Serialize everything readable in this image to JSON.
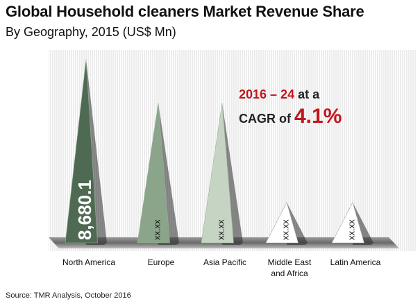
{
  "title": "Global Household cleaners Market Revenue Share",
  "subtitle": "By Geography, 2015 (US$ Mn)",
  "callout": {
    "period": "2016 – 24",
    "at_a": " at a",
    "cagr": "CAGR",
    "of": " of ",
    "cagr_value": "4.1%"
  },
  "source": "Source: TMR Analysis, October 2016",
  "colors": {
    "north_america": "#4e6a52",
    "europe": "#8aa58a",
    "asia_pacific": "#c6d5c3",
    "middle_east_africa": "#ffffff",
    "latin_america": "#ffffff",
    "shadow": "#3a3a3a",
    "accent": "#c0161e"
  },
  "chart_data": {
    "type": "bar",
    "categories": [
      "North America",
      "Europe",
      "Asia Pacific",
      "Middle East and Africa",
      "Latin America"
    ],
    "category_lines": [
      [
        "North America"
      ],
      [
        "Europe"
      ],
      [
        "Asia Pacific"
      ],
      [
        "Middle East",
        "and Africa"
      ],
      [
        "Latin America"
      ]
    ],
    "values": [
      8680.1,
      null,
      null,
      null,
      null
    ],
    "relative_heights": [
      1.0,
      0.76,
      0.76,
      0.22,
      0.22
    ],
    "data_labels": [
      "8,680.1",
      "xx.xx",
      "xx.xx",
      "xx.xx",
      "xx.xx"
    ],
    "title": "Global Household cleaners Market Revenue Share",
    "xlabel": "",
    "ylabel": "",
    "grid": false,
    "legend": "none"
  }
}
